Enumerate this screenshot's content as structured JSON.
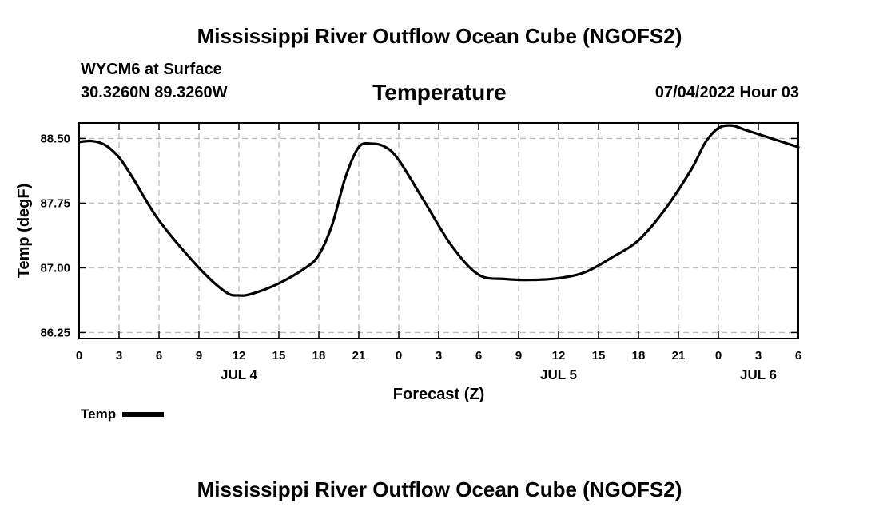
{
  "title": "Mississippi River Outflow Ocean Cube (NGOFS2)",
  "footer_title": "Mississippi River Outflow Ocean Cube (NGOFS2)",
  "station": "WYCM6 at Surface",
  "coordinates": "30.3260N  89.3260W",
  "subtitle": "Temperature",
  "datetime": "07/04/2022 Hour 03",
  "legend": {
    "label": "Temp",
    "color": "#000000"
  },
  "chart_data": {
    "type": "line",
    "title": "Temperature",
    "xlabel": "Forecast (Z)",
    "ylabel": "Temp (degF)",
    "xlim": [
      0,
      54
    ],
    "ylim": [
      86.18,
      88.68
    ],
    "grid": true,
    "x_ticks": [
      0,
      3,
      6,
      9,
      12,
      15,
      18,
      21,
      24,
      27,
      30,
      33,
      36,
      39,
      42,
      45,
      48,
      51,
      54
    ],
    "x_tick_labels": [
      "0",
      "3",
      "6",
      "9",
      "12",
      "15",
      "18",
      "21",
      "0",
      "3",
      "6",
      "9",
      "12",
      "15",
      "18",
      "21",
      "0",
      "3",
      "6"
    ],
    "date_labels": [
      {
        "x": 12,
        "label": "JUL 4"
      },
      {
        "x": 36,
        "label": "JUL 5"
      },
      {
        "x": 51,
        "label": "JUL 6"
      }
    ],
    "y_ticks": [
      86.25,
      87.0,
      87.75,
      88.5
    ],
    "y_tick_labels": [
      "86.25",
      "87.00",
      "87.75",
      "88.50"
    ],
    "series": [
      {
        "name": "Temp",
        "x": [
          0,
          1,
          2,
          3,
          4,
          6,
          9,
          11,
          12,
          13,
          15,
          17,
          18,
          19,
          20,
          21,
          22,
          23,
          24,
          26,
          28,
          30,
          32,
          34,
          36,
          38,
          40,
          42,
          44,
          46,
          47,
          48,
          49,
          50,
          51,
          52,
          53,
          54
        ],
        "values": [
          88.46,
          88.47,
          88.42,
          88.28,
          88.05,
          87.55,
          87.0,
          86.72,
          86.68,
          86.7,
          86.82,
          87.0,
          87.15,
          87.5,
          88.05,
          88.4,
          88.44,
          88.4,
          88.25,
          87.75,
          87.25,
          86.92,
          86.87,
          86.86,
          86.88,
          86.95,
          87.12,
          87.32,
          87.68,
          88.15,
          88.45,
          88.62,
          88.65,
          88.6,
          88.55,
          88.5,
          88.45,
          88.4
        ]
      }
    ]
  }
}
